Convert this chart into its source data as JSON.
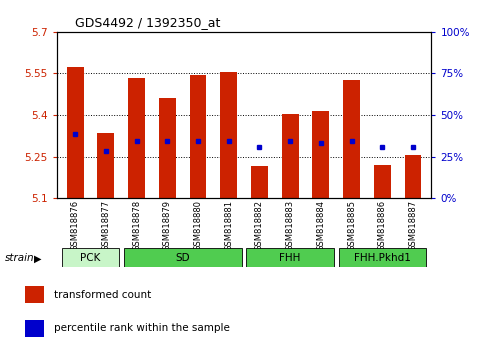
{
  "title": "GDS4492 / 1392350_at",
  "samples": [
    "GSM818876",
    "GSM818877",
    "GSM818878",
    "GSM818879",
    "GSM818880",
    "GSM818881",
    "GSM818882",
    "GSM818883",
    "GSM818884",
    "GSM818885",
    "GSM818886",
    "GSM818887"
  ],
  "bar_values": [
    5.575,
    5.335,
    5.535,
    5.46,
    5.545,
    5.555,
    5.215,
    5.405,
    5.415,
    5.525,
    5.22,
    5.255
  ],
  "percentile_values": [
    5.33,
    5.27,
    5.305,
    5.305,
    5.305,
    5.305,
    5.285,
    5.305,
    5.3,
    5.305,
    5.285,
    5.285
  ],
  "ymin": 5.1,
  "ymax": 5.7,
  "yticks": [
    5.1,
    5.25,
    5.4,
    5.55,
    5.7
  ],
  "ytick_labels": [
    "5.1",
    "5.25",
    "5.4",
    "5.55",
    "5.7"
  ],
  "right_yticks": [
    0,
    25,
    50,
    75,
    100
  ],
  "right_ytick_labels": [
    "0%",
    "25%",
    "50%",
    "75%",
    "100%"
  ],
  "gridlines": [
    5.25,
    5.4,
    5.55
  ],
  "bar_color": "#cc2200",
  "dot_color": "#0000cc",
  "bar_width": 0.55,
  "background_color": "#ffffff",
  "legend_items": [
    "transformed count",
    "percentile rank within the sample"
  ],
  "legend_colors": [
    "#cc2200",
    "#0000cc"
  ],
  "strain_label": "strain",
  "groups": [
    {
      "label": "PCK",
      "xstart": -0.42,
      "xend": 1.42,
      "color": "#c8f5c8"
    },
    {
      "label": "SD",
      "xstart": 1.58,
      "xend": 5.42,
      "color": "#50cc50"
    },
    {
      "label": "FHH",
      "xstart": 5.58,
      "xend": 8.42,
      "color": "#50cc50"
    },
    {
      "label": "FHH.Pkhd1",
      "xstart": 8.58,
      "xend": 11.42,
      "color": "#50cc50"
    }
  ]
}
